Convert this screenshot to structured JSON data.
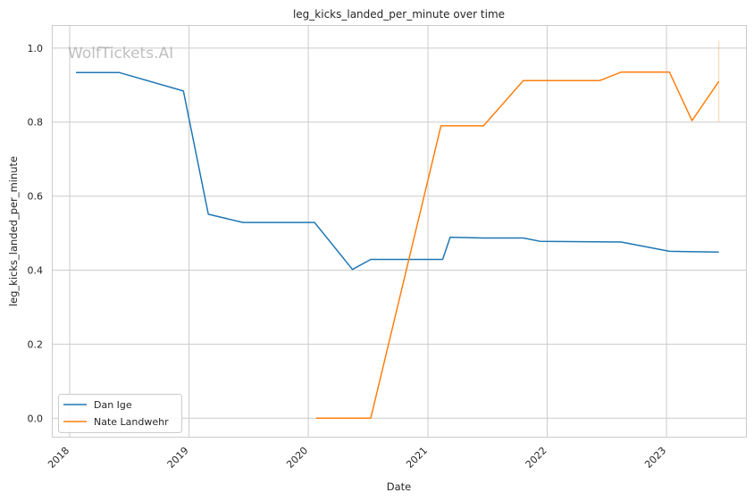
{
  "chart_data": {
    "type": "line",
    "title": "leg_kicks_landed_per_minute over time",
    "xlabel": "Date",
    "ylabel": "leg_kicks_landed_per_minute",
    "watermark": "WolfTickets.AI",
    "xlim": [
      "2017-11-10",
      "2023-09-01"
    ],
    "ylim": [
      -0.05,
      1.06
    ],
    "x_ticks": [
      "2018",
      "2019",
      "2020",
      "2021",
      "2022",
      "2023"
    ],
    "y_ticks": [
      "0.0",
      "0.2",
      "0.4",
      "0.6",
      "0.8",
      "1.0"
    ],
    "grid": true,
    "legend_position": "lower-left",
    "series": [
      {
        "name": "Dan Ige",
        "color": "#1f77b4",
        "points": [
          [
            "2018-01-20",
            0.934
          ],
          [
            "2018-06-01",
            0.934
          ],
          [
            "2018-12-15",
            0.884
          ],
          [
            "2019-03-01",
            0.551
          ],
          [
            "2019-06-15",
            0.529
          ],
          [
            "2020-01-20",
            0.529
          ],
          [
            "2020-05-15",
            0.402
          ],
          [
            "2020-07-10",
            0.429
          ],
          [
            "2021-02-15",
            0.429
          ],
          [
            "2021-03-10",
            0.489
          ],
          [
            "2021-06-20",
            0.487
          ],
          [
            "2021-10-20",
            0.487
          ],
          [
            "2021-12-10",
            0.478
          ],
          [
            "2022-08-15",
            0.476
          ],
          [
            "2023-01-10",
            0.451
          ],
          [
            "2023-06-10",
            0.449
          ]
        ]
      },
      {
        "name": "Nate Landwehr",
        "color": "#ff7f0e",
        "points": [
          [
            "2020-01-25",
            0.0
          ],
          [
            "2020-07-10",
            0.0
          ],
          [
            "2021-02-10",
            0.79
          ],
          [
            "2021-06-20",
            0.79
          ],
          [
            "2021-10-20",
            0.912
          ],
          [
            "2022-06-10",
            0.912
          ],
          [
            "2022-08-15",
            0.935
          ],
          [
            "2023-01-10",
            0.935
          ],
          [
            "2023-03-20",
            0.804
          ],
          [
            "2023-06-10",
            0.91
          ]
        ]
      }
    ],
    "error_bar": {
      "series": "Nate Landwehr",
      "x": "2023-06-10",
      "low": 0.8,
      "high": 1.02
    }
  }
}
